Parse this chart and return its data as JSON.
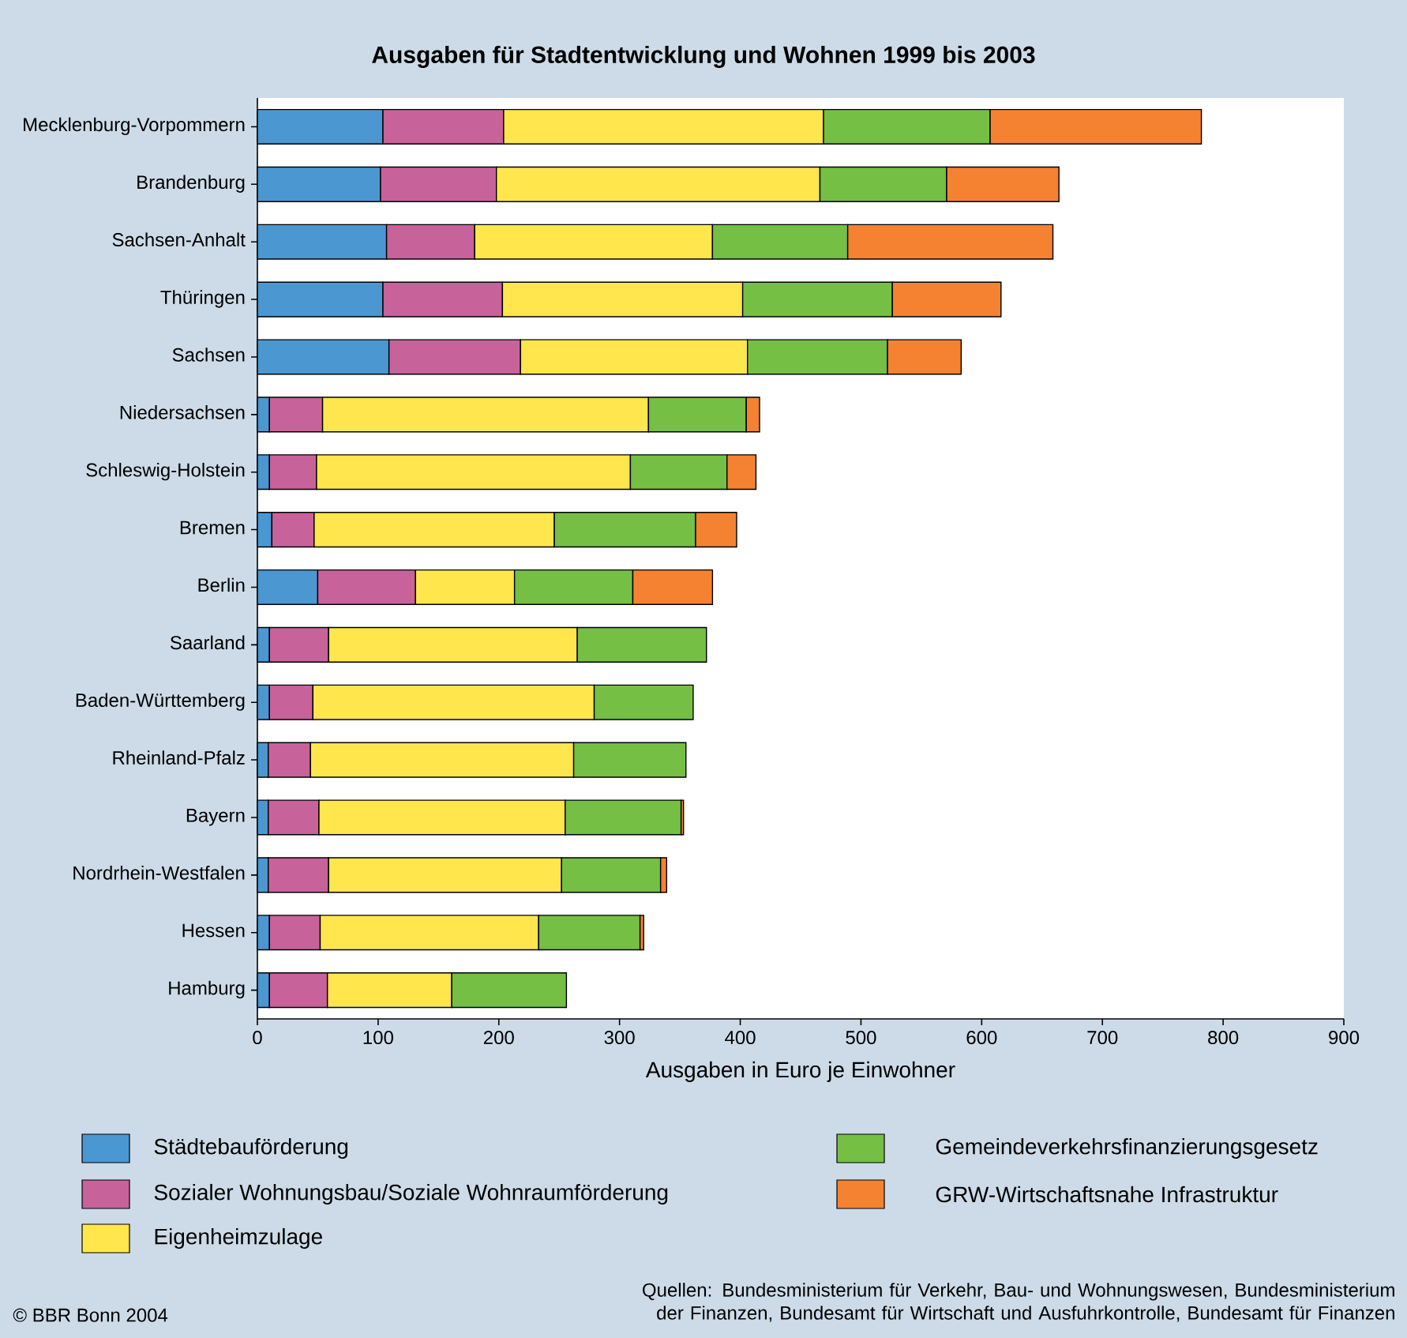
{
  "chart_data": {
    "type": "bar",
    "orientation": "horizontal",
    "stacked": true,
    "title": "Ausgaben für Stadtentwicklung und Wohnen 1999 bis 2003",
    "xlabel": "Ausgaben in Euro je Einwohner",
    "categories": [
      "Mecklenburg-Vorpommern",
      "Brandenburg",
      "Sachsen-Anhalt",
      "Thüringen",
      "Sachsen",
      "Niedersachsen",
      "Schleswig-Holstein",
      "Bremen",
      "Berlin",
      "Saarland",
      "Baden-Württemberg",
      "Rheinland-Pfalz",
      "Bayern",
      "Nordrhein-Westfalen",
      "Hessen",
      "Hamburg"
    ],
    "series": [
      {
        "name": "Städtebauförderung",
        "color": "#4a97d2",
        "values": [
          104,
          102,
          107,
          104,
          109,
          10,
          10,
          12,
          50,
          10,
          10,
          9,
          9,
          9,
          10,
          10
        ]
      },
      {
        "name": "Sozialer Wohnungsbau/Soziale Wohnraumförderung",
        "color": "#c8629a",
        "values": [
          100,
          96,
          73,
          99,
          109,
          44,
          39,
          35,
          81,
          49,
          36,
          35,
          42,
          50,
          42,
          48
        ]
      },
      {
        "name": "Eigenheimzulage",
        "color": "#fee64c",
        "values": [
          265,
          268,
          197,
          199,
          188,
          270,
          260,
          199,
          82,
          206,
          233,
          218,
          204,
          193,
          181,
          103
        ]
      },
      {
        "name": "Gemeindeverkehrsfinanzierungsgesetz",
        "color": "#74bf44",
        "values": [
          138,
          105,
          112,
          124,
          116,
          81,
          80,
          117,
          98,
          107,
          82,
          93,
          96,
          82,
          84,
          95
        ]
      },
      {
        "name": "GRW-Wirtschaftsnahe Infrastruktur",
        "color": "#f48231",
        "values": [
          175,
          93,
          170,
          90,
          61,
          11,
          24,
          34,
          66,
          null,
          null,
          null,
          2,
          5,
          3,
          null
        ]
      }
    ],
    "xlim": [
      0,
      900
    ],
    "xticks": [
      0,
      100,
      200,
      300,
      400,
      500,
      600,
      700,
      800,
      900
    ],
    "legend": "bottom",
    "annotations": [
      "© BBR Bonn 2004",
      "Quellen: Bundesministerium für Verkehr, Bau- und Wohnungswesen, Bundesministerium der Finanzen, Bundesamt für Wirtschaft und Ausfuhrkontrolle, Bundesamt für Finanzen"
    ]
  }
}
